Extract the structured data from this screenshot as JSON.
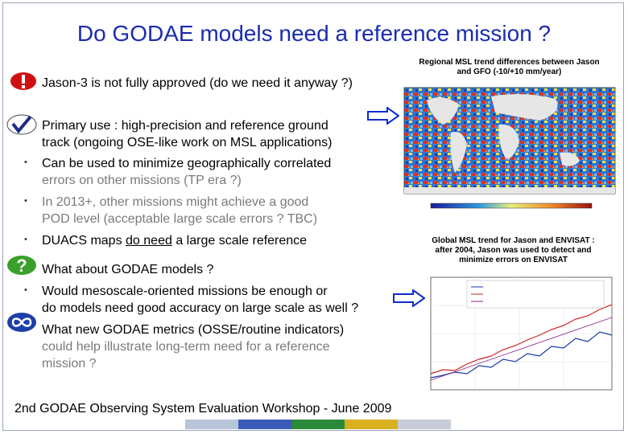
{
  "title": "Do GODAE models need a reference mission ?",
  "items": {
    "jason3": "Jason-3 is not fully approved (do we need it anyway ?)",
    "primary_1": "Primary use : high-precision and reference ground",
    "primary_2": "track (ongoing OSE-like work on MSL applications)",
    "minimize_1": "Can be used to minimize geographically correlated",
    "minimize_2": "errors on other missions (TP era ?)",
    "pod_1": "In 2013+, other missions might achieve a good",
    "pod_2": "POD level (acceptable large scale errors ? TBC)",
    "duacs_a": "DUACS maps ",
    "duacs_b": "do need",
    "duacs_c": " a large scale reference",
    "about": "What about GODAE models ?",
    "meso_1": "Would mesoscale-oriented missions be enough or",
    "meso_2": "do models need good accuracy on large scale as well ?",
    "metrics_1": "What new GODAE metrics (OSSE/routine indicators)",
    "metrics_2": "could help illustrate long-term need for a reference",
    "metrics_3": "mission ?"
  },
  "bullets": [
    "•",
    "•",
    "•",
    "•"
  ],
  "captions": {
    "map_1": "Regional MSL trend differences between Jason",
    "map_2": "and GFO (-10/+10 mm/year)",
    "global_1": "Global MSL trend for Jason and ENVISAT :",
    "global_2": "after 2004, Jason was used to detect and",
    "global_3": "minimize errors on ENVISAT"
  },
  "footer": "2nd GODAE Observing System Evaluation Workshop - June 2009",
  "icons": [
    "exclamation-icon",
    "checkmark-icon",
    "question-icon",
    "infinity-icon"
  ],
  "colors": {
    "title": "#1a2bb0",
    "exclamation": "#d01010",
    "check": "#1d2c8a",
    "question": "#3aa02a",
    "infinity": "#1d3fa8",
    "arrow": "#0b2bd0"
  }
}
